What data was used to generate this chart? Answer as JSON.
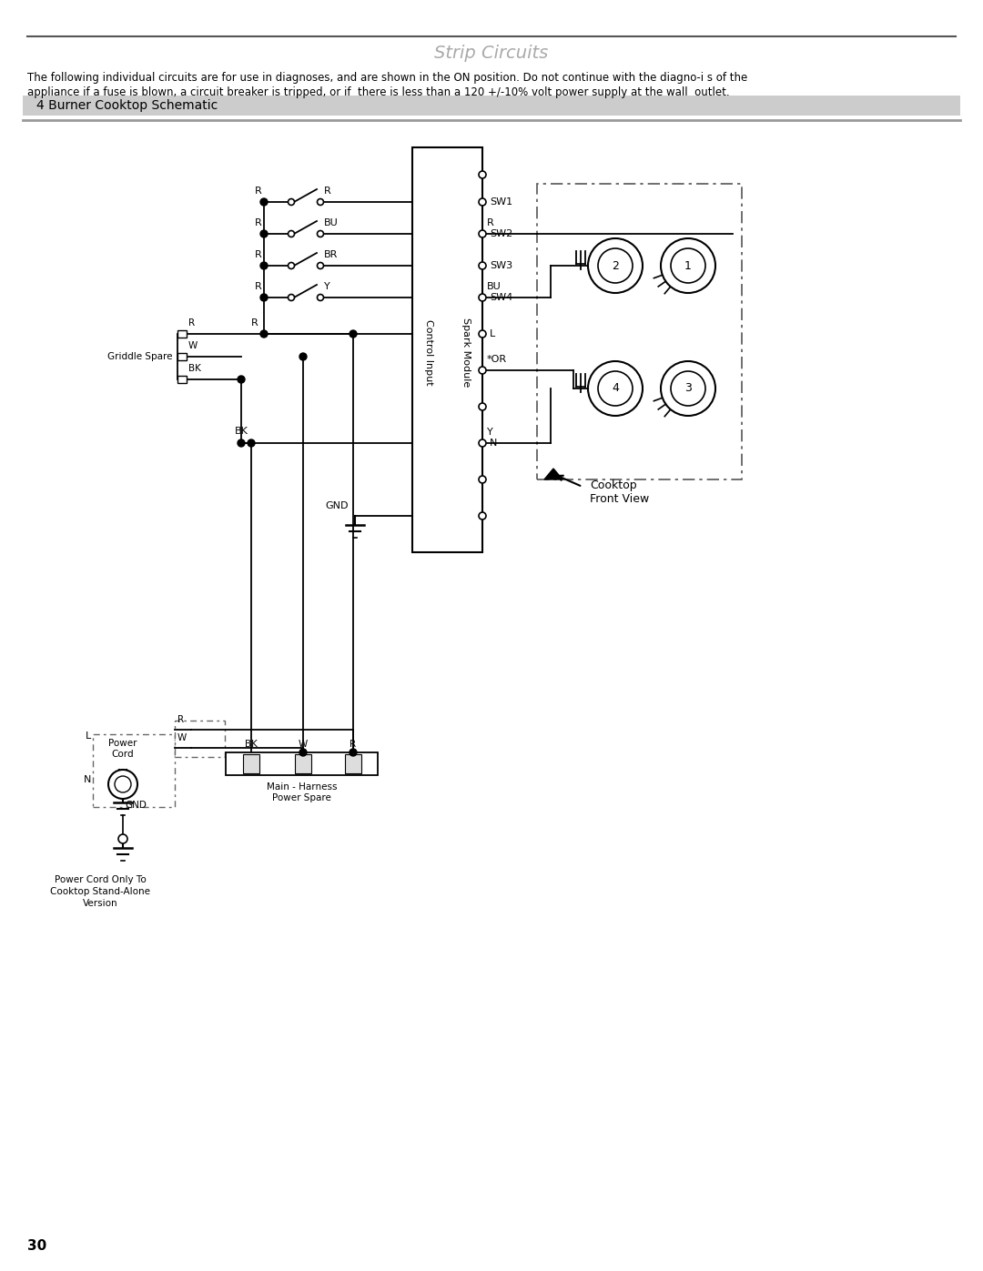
{
  "title": "Strip Circuits",
  "subtitle_line1": "The following individual circuits are for use in diagnoses, and are shown in the ON position. Do not continue with the diagno­i s of the",
  "subtitle_line2": "appliance if a fuse is blown, a circuit breaker is tripped, or if  there is less than a 120 +/-10% volt power supply at the wall  outlet.",
  "section_title": "4 Burner Cooktop Schematic",
  "page_number": "30",
  "bg_color": "#ffffff",
  "line_color": "#000000",
  "gray_color": "#888888"
}
